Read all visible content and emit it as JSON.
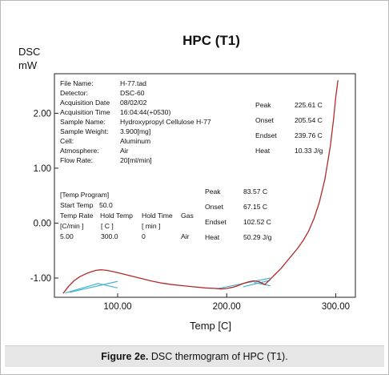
{
  "figure": {
    "caption_label": "Figure 2e.",
    "caption_text": "DSC thermogram of HPC (T1)."
  },
  "chart_data": {
    "type": "line",
    "title": "HPC (T1)",
    "ylabel_line1": "DSC",
    "ylabel_line2": "mW",
    "xlabel": "Temp  [C]",
    "xlim": [
      42,
      318
    ],
    "ylim": [
      -1.35,
      2.72
    ],
    "x_ticks": [
      100,
      200,
      300
    ],
    "x_tick_labels": [
      "100.00",
      "200.00",
      "300.00"
    ],
    "y_ticks": [
      2.0,
      1.0,
      0.0,
      -1.0
    ],
    "y_tick_labels": [
      "2.00",
      "1.00",
      "0.00",
      "-1.00"
    ],
    "grid": false,
    "colors": {
      "curve": "#b02a2a",
      "baseline": "#49b3cf",
      "axis": "#222222"
    },
    "series": [
      {
        "x": [
          50,
          55,
          60,
          65,
          70,
          75,
          80,
          85,
          90,
          95,
          100,
          110,
          120,
          130,
          140,
          150,
          160,
          170,
          180,
          190,
          195,
          200,
          205,
          210,
          215,
          220,
          225,
          230,
          235,
          240,
          245,
          250,
          255,
          260,
          265,
          270,
          275,
          280,
          285,
          290,
          295,
          298,
          300,
          302
        ],
        "y": [
          -1.28,
          -1.15,
          -1.05,
          -0.98,
          -0.93,
          -0.89,
          -0.86,
          -0.85,
          -0.86,
          -0.88,
          -0.9,
          -0.95,
          -1.0,
          -1.05,
          -1.09,
          -1.12,
          -1.14,
          -1.16,
          -1.18,
          -1.19,
          -1.2,
          -1.19,
          -1.17,
          -1.14,
          -1.1,
          -1.07,
          -1.05,
          -1.07,
          -1.12,
          -1.02,
          -0.92,
          -0.82,
          -0.7,
          -0.58,
          -0.46,
          -0.32,
          -0.15,
          0.08,
          0.38,
          0.8,
          1.4,
          1.9,
          2.3,
          2.6
        ]
      }
    ],
    "baselines": [
      {
        "x": [
          52,
          82
        ],
        "y": [
          -1.27,
          -1.1
        ]
      },
      {
        "x": [
          56,
          100
        ],
        "y": [
          -1.26,
          -1.06
        ]
      },
      {
        "x": [
          82,
          100
        ],
        "y": [
          -1.1,
          -1.18
        ]
      },
      {
        "x": [
          190,
          240
        ],
        "y": [
          -1.2,
          -1.0
        ]
      },
      {
        "x": [
          215,
          240
        ],
        "y": [
          -1.16,
          -1.04
        ]
      },
      {
        "x": [
          225,
          240
        ],
        "y": [
          -1.08,
          -1.14
        ]
      }
    ],
    "info_block": [
      {
        "label": "File Name:",
        "value": "H-77.tad"
      },
      {
        "label": "Detector:",
        "value": "DSC-60"
      },
      {
        "label": "Acquisition Date",
        "value": "08/02/02"
      },
      {
        "label": "Acquisition Time",
        "value": "16:04:44(+0530)"
      },
      {
        "label": "Sample Name:",
        "value": "Hydroxypropyl Cellulose H-77"
      },
      {
        "label": "Sample Weight:",
        "value": "3.900[mg]"
      },
      {
        "label": "Cell:",
        "value": "Aluminum"
      },
      {
        "label": "Atmosphere:",
        "value": "Air"
      },
      {
        "label": "Flow Rate:",
        "value": "20[ml/min]"
      }
    ],
    "temp_program": {
      "heading": "[Temp Program]",
      "start_temp_label": "Start Temp",
      "start_temp_value": "50.0",
      "col_headers": [
        "Temp Rate",
        "Hold Temp",
        "Hold Time",
        "Gas"
      ],
      "col_units": [
        "[C/min ]",
        "[ C ]",
        "[ min ]"
      ],
      "row": [
        "5.00",
        "300.0",
        "0",
        "Air"
      ]
    },
    "peak_results_1": [
      {
        "label": "Peak",
        "value": "225.61 C"
      },
      {
        "label": "Onset",
        "value": "205.54 C"
      },
      {
        "label": "Endset",
        "value": "239.76 C"
      },
      {
        "label": "Heat",
        "value": "10.33 J/g"
      }
    ],
    "peak_results_2": [
      {
        "label": "Peak",
        "value": "83.57 C"
      },
      {
        "label": "Onset",
        "value": "67.15 C"
      },
      {
        "label": "Endset",
        "value": "102.52 C"
      },
      {
        "label": "Heat",
        "value": "50.29 J/g"
      }
    ]
  }
}
